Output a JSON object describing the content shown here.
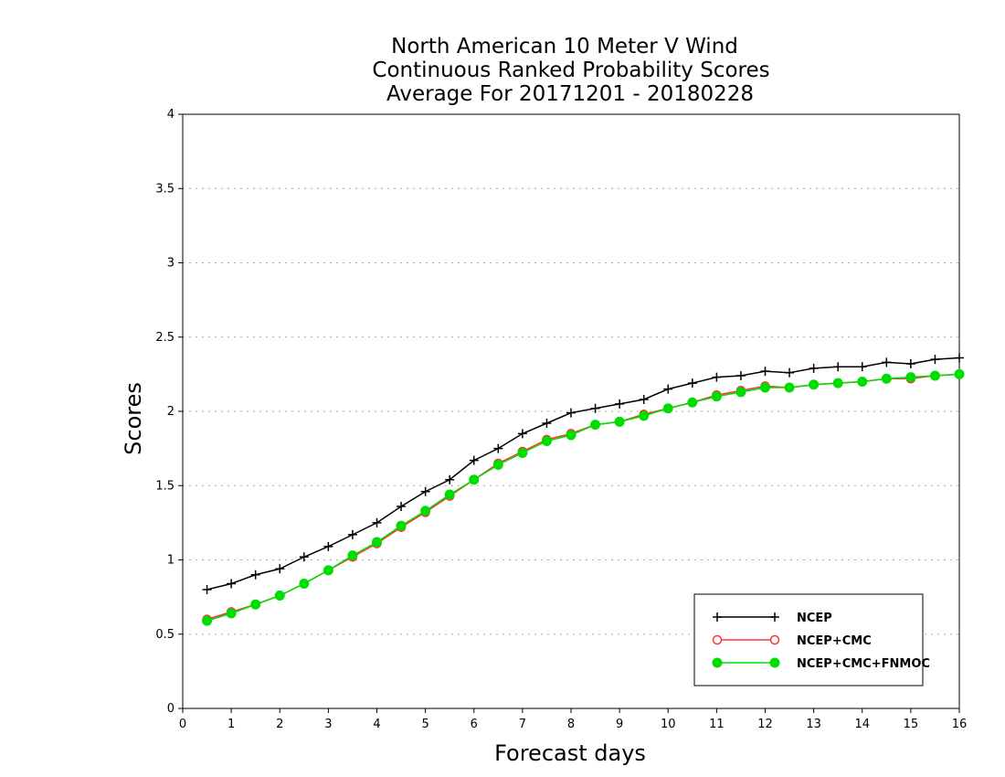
{
  "chart_data": {
    "type": "line",
    "title_lines": [
      "North American 10 Meter V Wind",
      "Continuous Ranked Probability Scores",
      "Average For 20171201 - 20180228"
    ],
    "xlabel": "Forecast days",
    "ylabel": "Scores",
    "xlim": [
      0,
      16
    ],
    "ylim": [
      0,
      4
    ],
    "x_ticks": [
      "0",
      "1",
      "2",
      "3",
      "4",
      "5",
      "6",
      "7",
      "8",
      "9",
      "10",
      "11",
      "12",
      "13",
      "14",
      "15",
      "16"
    ],
    "y_ticks": [
      "0",
      "0.5",
      "1",
      "1.5",
      "2",
      "2.5",
      "3",
      "3.5",
      "4"
    ],
    "grid": "horizontal dotted",
    "legend_position": "bottom-right",
    "x": [
      0.5,
      1,
      1.5,
      2,
      2.5,
      3,
      3.5,
      4,
      4.5,
      5,
      5.5,
      6,
      6.5,
      7,
      7.5,
      8,
      8.5,
      9,
      9.5,
      10,
      10.5,
      11,
      11.5,
      12,
      12.5,
      13,
      13.5,
      14,
      14.5,
      15,
      15.5,
      16
    ],
    "series": [
      {
        "name": "NCEP",
        "color": "#000000",
        "marker": "plus",
        "values": [
          0.8,
          0.84,
          0.9,
          0.94,
          1.02,
          1.09,
          1.17,
          1.25,
          1.36,
          1.46,
          1.54,
          1.67,
          1.75,
          1.85,
          1.92,
          1.99,
          2.02,
          2.05,
          2.08,
          2.15,
          2.19,
          2.23,
          2.24,
          2.27,
          2.26,
          2.29,
          2.3,
          2.3,
          2.33,
          2.32,
          2.35,
          2.36
        ]
      },
      {
        "name": "NCEP+CMC",
        "color": "#ff3333",
        "marker": "open-circle",
        "values": [
          0.6,
          0.65,
          0.7,
          0.76,
          0.84,
          0.93,
          1.02,
          1.11,
          1.22,
          1.32,
          1.43,
          1.54,
          1.65,
          1.73,
          1.81,
          1.85,
          1.91,
          1.93,
          1.98,
          2.02,
          2.06,
          2.11,
          2.14,
          2.17,
          2.16,
          2.18,
          2.19,
          2.2,
          2.22,
          2.22,
          2.24,
          2.25
        ]
      },
      {
        "name": "NCEP+CMC+FNMOC",
        "color": "#00dd00",
        "marker": "filled-circle",
        "values": [
          0.59,
          0.64,
          0.7,
          0.76,
          0.84,
          0.93,
          1.03,
          1.12,
          1.23,
          1.33,
          1.44,
          1.54,
          1.64,
          1.72,
          1.8,
          1.84,
          1.91,
          1.93,
          1.97,
          2.02,
          2.06,
          2.1,
          2.13,
          2.16,
          2.16,
          2.18,
          2.19,
          2.2,
          2.22,
          2.23,
          2.24,
          2.25
        ]
      }
    ]
  }
}
